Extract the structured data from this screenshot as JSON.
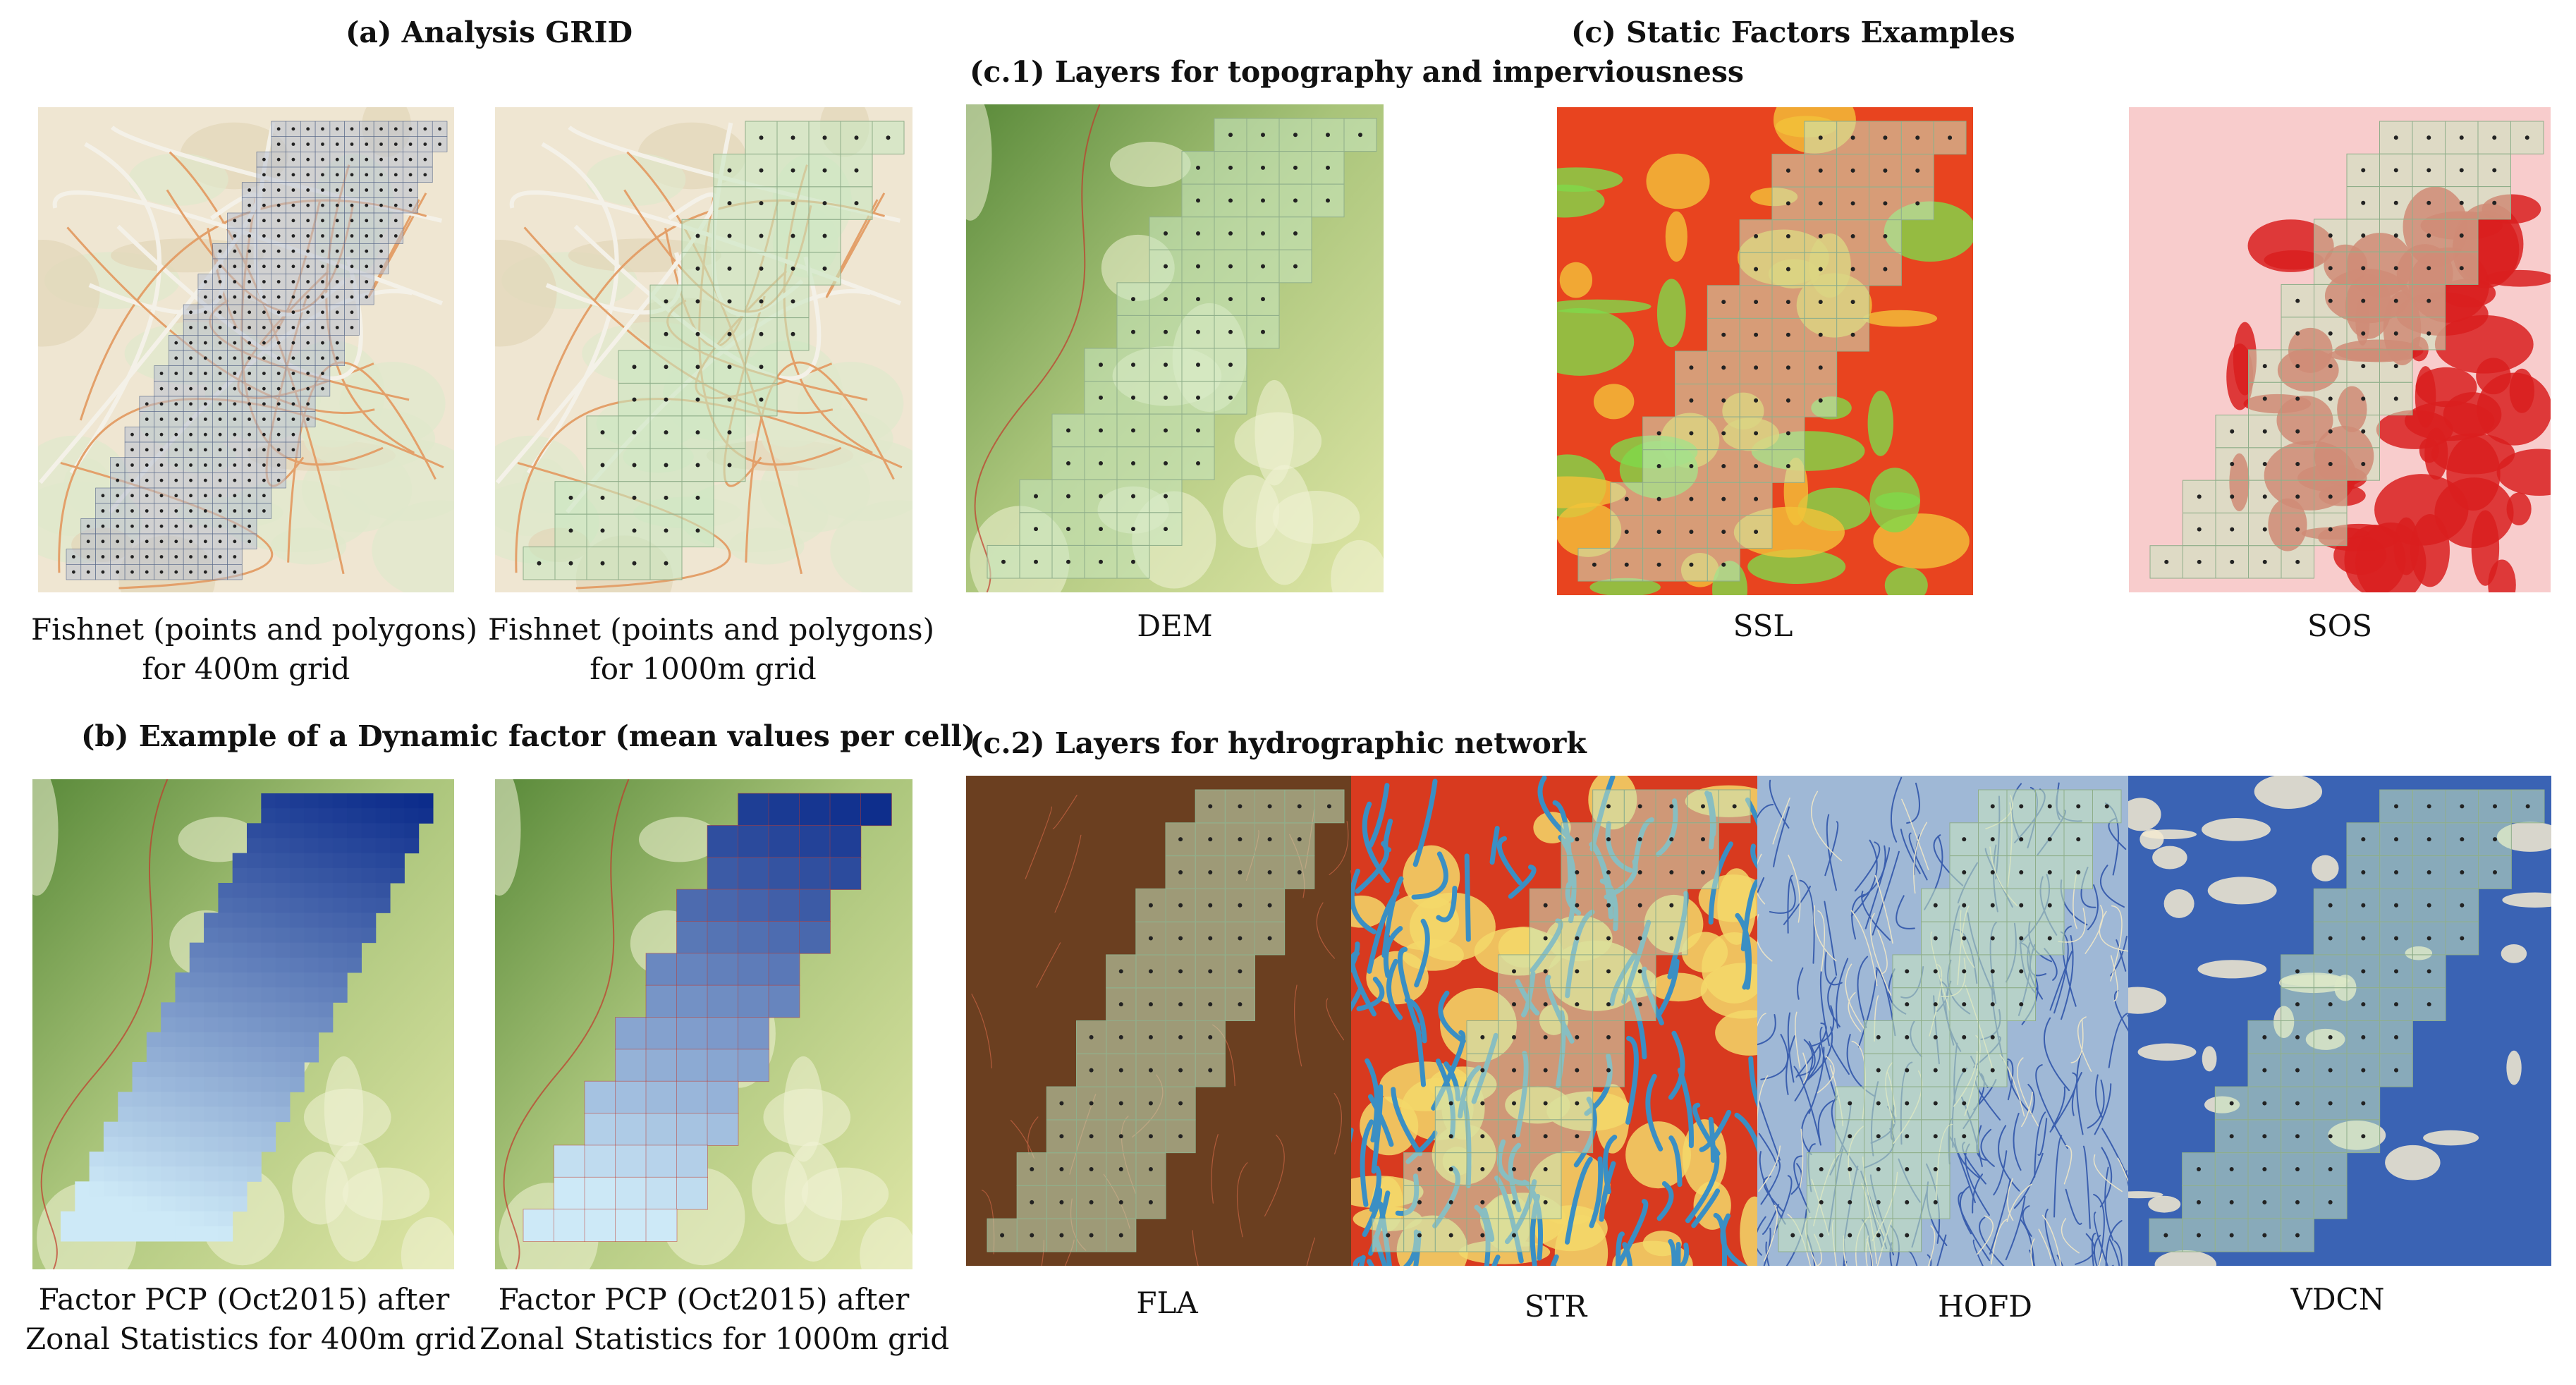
{
  "section_a": {
    "title": "(a) Analysis GRID",
    "panels": [
      {
        "caption_line1": "Fishnet (points and polygons)",
        "caption_line2": "for 400m grid"
      },
      {
        "caption_line1": "Fishnet (points and polygons)",
        "caption_line2": "for 1000m grid"
      }
    ]
  },
  "section_b": {
    "title": "(b) Example of a Dynamic factor (mean values per cell)",
    "panels": [
      {
        "caption_line1": "Factor PCP (Oct2015) after",
        "caption_line2": "Zonal Statistics for 400m grid"
      },
      {
        "caption_line1": "Factor PCP (Oct2015) after",
        "caption_line2": "Zonal Statistics for 1000m grid"
      }
    ]
  },
  "section_c": {
    "title": "(c) Static Factors Examples",
    "sub1": {
      "title": "(c.1) Layers for topography and imperviousness",
      "panels": [
        {
          "label": "DEM"
        },
        {
          "label": "SSL"
        },
        {
          "label": "SOS"
        }
      ]
    },
    "sub2": {
      "title": "(c.2) Layers for hydrographic network",
      "panels": [
        {
          "label": "FLA"
        },
        {
          "label": "STR"
        },
        {
          "label": "HOFD"
        },
        {
          "label": "VDCN"
        }
      ]
    }
  },
  "colors": {
    "grid_fill": "#c8e6c0",
    "grid_stroke": "#8fae8a",
    "point": "#222222",
    "boundary": "#c0392b",
    "dem_low": "#dfe6a6",
    "dem_high": "#5a8a3a",
    "fla": "#6b3f20",
    "str_base": "#d83a1f",
    "hofd_base": "#9fb8d6",
    "vdcn_base": "#3a63b4",
    "pcp_dark": "#0a2a8a",
    "pcp_light": "#cde9f7"
  }
}
